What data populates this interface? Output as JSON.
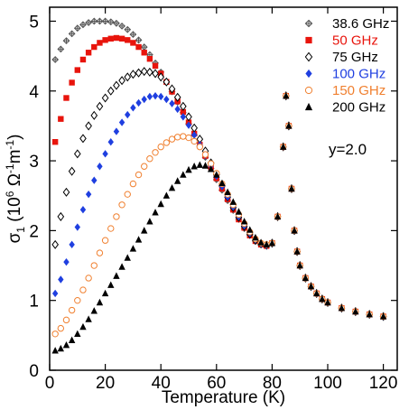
{
  "chart_data": {
    "type": "scatter",
    "xlabel": "Temperature (K)",
    "ylabel": {
      "base": "σ",
      "sub": "1",
      "unit_a": "(10",
      "unit_a_sup": "6",
      "unit_b": " Ω",
      "unit_b_sup": "-1",
      "unit_c": "m",
      "unit_c_sup": "-1",
      "unit_d": ")"
    },
    "xlim": [
      0,
      125
    ],
    "ylim": [
      0,
      5.2
    ],
    "xticks": [
      0,
      20,
      40,
      60,
      80,
      100,
      120
    ],
    "yticks": [
      0,
      1,
      2,
      3,
      4,
      5
    ],
    "grid": false,
    "legend_position": "top-right",
    "annotation": "y=2.0",
    "series": [
      {
        "name": "38.6 GHz",
        "marker": "plus-diamond",
        "color": "#555555",
        "x": [
          2,
          4,
          6,
          8,
          10,
          12,
          14,
          16,
          18,
          20,
          22,
          24,
          26,
          28,
          30,
          32,
          34,
          36,
          38,
          40,
          42,
          44,
          46,
          48,
          50,
          52,
          54,
          56,
          58,
          60,
          62,
          64,
          66,
          68,
          70,
          72,
          74,
          76,
          78,
          80,
          82,
          84,
          85,
          86,
          87,
          88,
          89,
          90,
          92,
          94,
          96,
          98,
          100,
          105,
          110,
          115,
          120
        ],
        "y": [
          4.45,
          4.6,
          4.72,
          4.82,
          4.9,
          4.95,
          4.98,
          5.0,
          5.0,
          5.0,
          4.99,
          4.97,
          4.93,
          4.88,
          4.81,
          4.73,
          4.63,
          4.52,
          4.4,
          4.27,
          4.13,
          3.99,
          3.84,
          3.69,
          3.53,
          3.37,
          3.21,
          3.05,
          2.89,
          2.73,
          2.58,
          2.43,
          2.29,
          2.16,
          2.03,
          1.93,
          1.85,
          1.8,
          1.78,
          1.82,
          2.2,
          3.2,
          3.93,
          3.5,
          2.6,
          2.0,
          1.7,
          1.5,
          1.32,
          1.2,
          1.1,
          1.02,
          0.97,
          0.89,
          0.84,
          0.8,
          0.77
        ]
      },
      {
        "name": "50 GHz",
        "marker": "square",
        "color": "#e8140c",
        "x": [
          2,
          4,
          6,
          8,
          10,
          12,
          14,
          16,
          18,
          20,
          22,
          24,
          26,
          28,
          30,
          32,
          34,
          36,
          38,
          40,
          42,
          44,
          46,
          48,
          50,
          52,
          54,
          56,
          58,
          60,
          62,
          64,
          66,
          68,
          70,
          72,
          74,
          76,
          78,
          80,
          82,
          84,
          85,
          86,
          87,
          88,
          89,
          90,
          92,
          94,
          96,
          98,
          100,
          105,
          110,
          115,
          120
        ],
        "y": [
          3.27,
          3.6,
          3.9,
          4.12,
          4.3,
          4.45,
          4.55,
          4.63,
          4.69,
          4.73,
          4.75,
          4.76,
          4.75,
          4.73,
          4.69,
          4.63,
          4.55,
          4.46,
          4.36,
          4.25,
          4.13,
          3.99,
          3.85,
          3.7,
          3.55,
          3.39,
          3.23,
          3.07,
          2.91,
          2.75,
          2.6,
          2.45,
          2.3,
          2.16,
          2.04,
          1.93,
          1.85,
          1.8,
          1.78,
          1.82,
          2.2,
          3.2,
          3.93,
          3.5,
          2.6,
          2.0,
          1.7,
          1.5,
          1.32,
          1.2,
          1.1,
          1.02,
          0.97,
          0.89,
          0.84,
          0.8,
          0.77
        ]
      },
      {
        "name": "75 GHz",
        "marker": "open-diamond",
        "color": "#000000",
        "x": [
          2,
          4,
          6,
          8,
          10,
          12,
          14,
          16,
          18,
          20,
          22,
          24,
          26,
          28,
          30,
          32,
          34,
          36,
          38,
          40,
          42,
          44,
          46,
          48,
          50,
          52,
          54,
          56,
          58,
          60,
          62,
          64,
          66,
          68,
          70,
          72,
          74,
          76,
          78,
          80,
          82,
          84,
          85,
          86,
          87,
          88,
          89,
          90,
          92,
          94,
          96,
          98,
          100,
          105,
          110,
          115,
          120
        ],
        "y": [
          1.8,
          2.2,
          2.55,
          2.85,
          3.1,
          3.32,
          3.5,
          3.65,
          3.78,
          3.9,
          4.0,
          4.08,
          4.15,
          4.2,
          4.24,
          4.26,
          4.28,
          4.27,
          4.25,
          4.2,
          4.13,
          4.03,
          3.91,
          3.78,
          3.63,
          3.47,
          3.31,
          3.14,
          2.97,
          2.8,
          2.64,
          2.48,
          2.33,
          2.19,
          2.06,
          1.95,
          1.86,
          1.81,
          1.79,
          1.82,
          2.2,
          3.2,
          3.93,
          3.5,
          2.6,
          2.0,
          1.7,
          1.5,
          1.32,
          1.2,
          1.1,
          1.02,
          0.97,
          0.89,
          0.84,
          0.8,
          0.77
        ]
      },
      {
        "name": "100 GHz",
        "marker": "filled-diamond",
        "color": "#1f3fe0",
        "x": [
          2,
          4,
          6,
          8,
          10,
          12,
          14,
          16,
          18,
          20,
          22,
          24,
          26,
          28,
          30,
          32,
          34,
          36,
          38,
          40,
          42,
          44,
          46,
          48,
          50,
          52,
          54,
          56,
          58,
          60,
          62,
          64,
          66,
          68,
          70,
          72,
          74,
          76,
          78,
          80,
          82,
          84,
          85,
          86,
          87,
          88,
          89,
          90,
          92,
          94,
          96,
          98,
          100,
          105,
          110,
          115,
          120
        ],
        "y": [
          1.1,
          1.3,
          1.55,
          1.8,
          2.05,
          2.3,
          2.52,
          2.72,
          2.92,
          3.1,
          3.27,
          3.42,
          3.55,
          3.66,
          3.76,
          3.83,
          3.88,
          3.92,
          3.93,
          3.92,
          3.88,
          3.82,
          3.74,
          3.63,
          3.51,
          3.37,
          3.23,
          3.08,
          2.93,
          2.78,
          2.63,
          2.48,
          2.34,
          2.2,
          2.07,
          1.96,
          1.87,
          1.81,
          1.79,
          1.82,
          2.2,
          3.2,
          3.93,
          3.5,
          2.6,
          2.0,
          1.7,
          1.5,
          1.32,
          1.2,
          1.1,
          1.02,
          0.97,
          0.89,
          0.84,
          0.8,
          0.77
        ]
      },
      {
        "name": "150 GHz",
        "marker": "open-circle",
        "color": "#f08030",
        "x": [
          2,
          4,
          6,
          8,
          10,
          12,
          14,
          16,
          18,
          20,
          22,
          24,
          26,
          28,
          30,
          32,
          34,
          36,
          38,
          40,
          42,
          44,
          46,
          48,
          50,
          52,
          54,
          56,
          58,
          60,
          62,
          64,
          66,
          68,
          70,
          72,
          74,
          76,
          78,
          80,
          82,
          84,
          85,
          86,
          87,
          88,
          89,
          90,
          92,
          94,
          96,
          98,
          100,
          105,
          110,
          115,
          120
        ],
        "y": [
          0.52,
          0.6,
          0.72,
          0.86,
          1.0,
          1.15,
          1.32,
          1.5,
          1.68,
          1.86,
          2.03,
          2.2,
          2.37,
          2.52,
          2.67,
          2.8,
          2.92,
          3.03,
          3.12,
          3.2,
          3.26,
          3.31,
          3.34,
          3.35,
          3.33,
          3.28,
          3.2,
          3.09,
          2.96,
          2.82,
          2.67,
          2.52,
          2.37,
          2.23,
          2.1,
          1.98,
          1.88,
          1.82,
          1.8,
          1.82,
          2.2,
          3.2,
          3.93,
          3.5,
          2.6,
          2.0,
          1.7,
          1.5,
          1.32,
          1.2,
          1.1,
          1.02,
          0.97,
          0.89,
          0.84,
          0.8,
          0.77
        ]
      },
      {
        "name": "200 GHz",
        "marker": "filled-triangle",
        "color": "#000000",
        "x": [
          2,
          4,
          6,
          8,
          10,
          12,
          14,
          16,
          18,
          20,
          22,
          24,
          26,
          28,
          30,
          32,
          34,
          36,
          38,
          40,
          42,
          44,
          46,
          48,
          50,
          52,
          54,
          56,
          58,
          60,
          62,
          64,
          66,
          68,
          70,
          72,
          74,
          76,
          78,
          80,
          82,
          84,
          85,
          86,
          87,
          88,
          89,
          90,
          92,
          94,
          96,
          98,
          100,
          105,
          110,
          115,
          120
        ],
        "y": [
          0.28,
          0.31,
          0.36,
          0.43,
          0.52,
          0.62,
          0.73,
          0.85,
          0.97,
          1.1,
          1.22,
          1.35,
          1.48,
          1.61,
          1.74,
          1.87,
          2.0,
          2.13,
          2.26,
          2.38,
          2.5,
          2.61,
          2.71,
          2.8,
          2.87,
          2.92,
          2.94,
          2.93,
          2.88,
          2.8,
          2.68,
          2.55,
          2.41,
          2.27,
          2.13,
          2.01,
          1.9,
          1.83,
          1.8,
          1.82,
          2.2,
          3.2,
          3.93,
          3.5,
          2.6,
          2.0,
          1.7,
          1.5,
          1.32,
          1.2,
          1.1,
          1.02,
          0.97,
          0.89,
          0.84,
          0.8,
          0.77
        ]
      }
    ]
  }
}
